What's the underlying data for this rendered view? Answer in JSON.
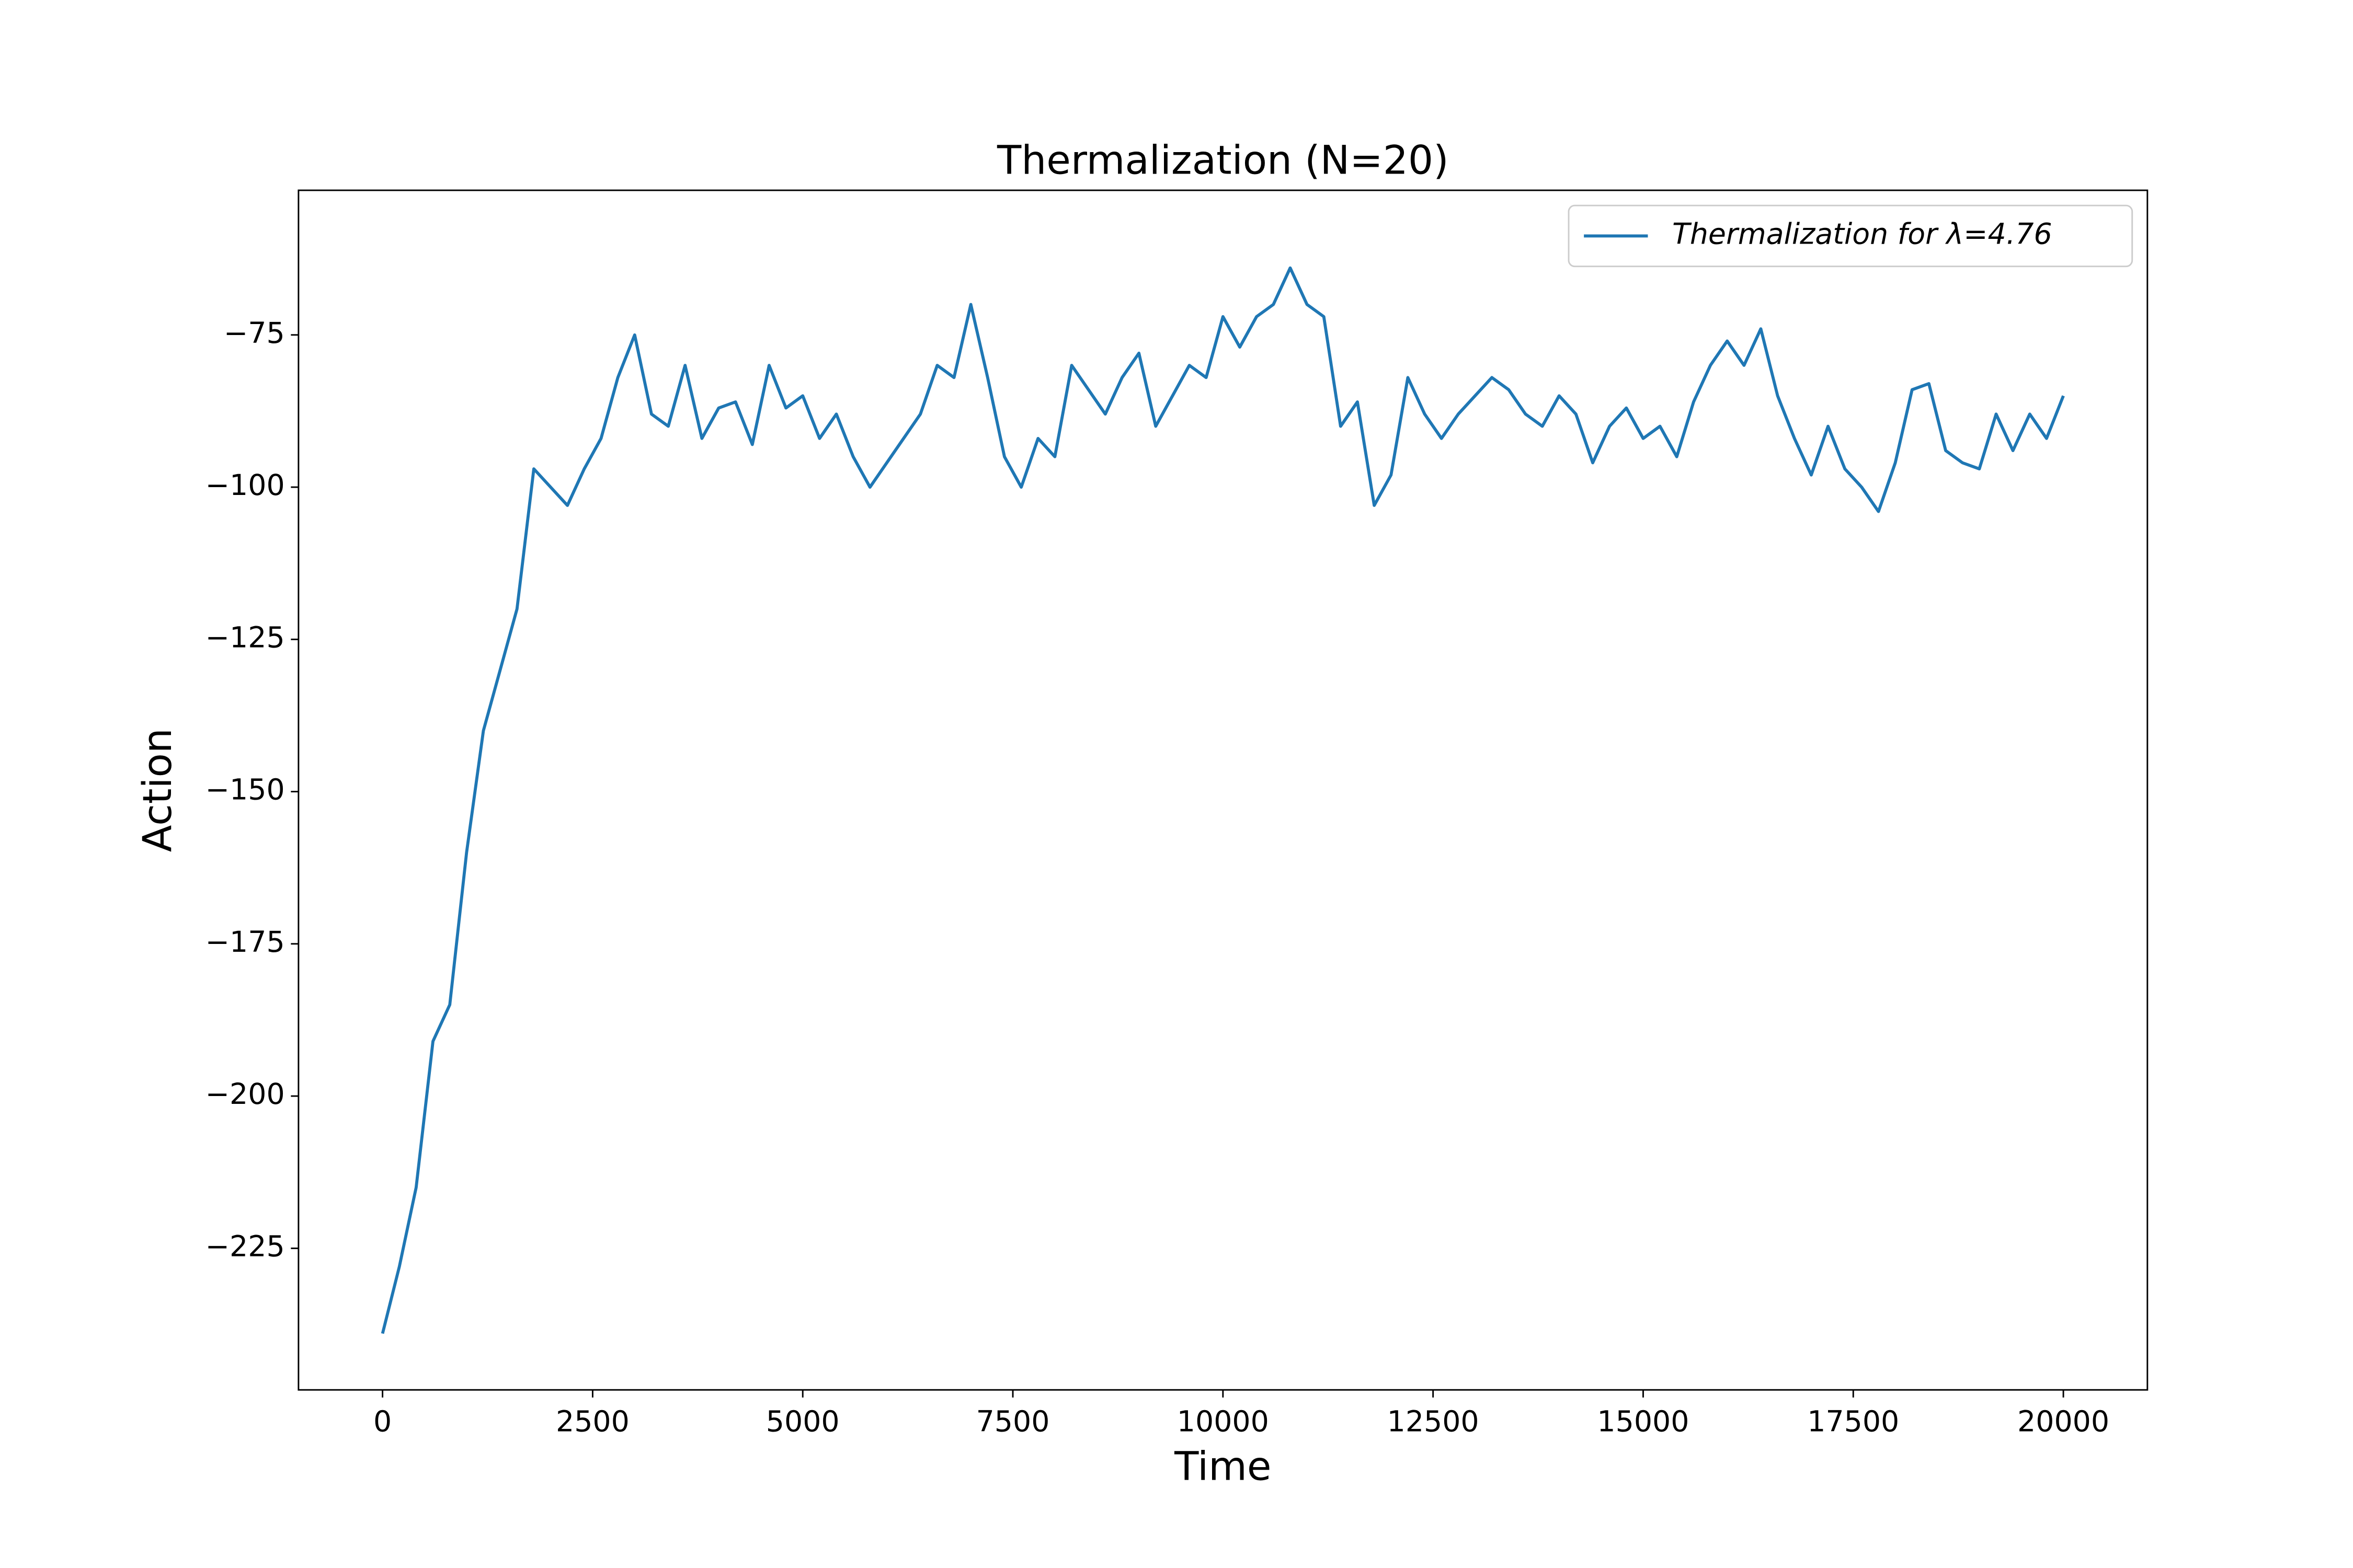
{
  "chart_data": {
    "type": "line",
    "title": "Thermalization (N=20)",
    "xlabel": "Time",
    "ylabel": "Action",
    "x": [
      0,
      200,
      400,
      600,
      800,
      1000,
      1200,
      1400,
      1600,
      1800,
      2000,
      2200,
      2400,
      2600,
      2800,
      3000,
      3200,
      3400,
      3600,
      3800,
      4000,
      4200,
      4400,
      4600,
      4800,
      5000,
      5200,
      5400,
      5600,
      5800,
      6000,
      6200,
      6400,
      6600,
      6800,
      7000,
      7200,
      7400,
      7600,
      7800,
      8000,
      8200,
      8400,
      8600,
      8800,
      9000,
      9200,
      9400,
      9600,
      9800,
      10000,
      10200,
      10400,
      10600,
      10800,
      11000,
      11200,
      11400,
      11600,
      11800,
      12000,
      12200,
      12400,
      12600,
      12800,
      13000,
      13200,
      13400,
      13600,
      13800,
      14000,
      14200,
      14400,
      14600,
      14800,
      15000,
      15200,
      15400,
      15600,
      15800,
      16000,
      16200,
      16400,
      16600,
      16800,
      17000,
      17200,
      17400,
      17600,
      17800,
      18000,
      18200,
      18400,
      18600,
      18800,
      19000,
      19200,
      19400,
      19600,
      19800,
      20000
    ],
    "series": [
      {
        "name": "Thermalization for λ=4.76",
        "color": "#1f77b4",
        "values": [
          -239,
          -228,
          -215,
          -191,
          -185,
          -160,
          -140,
          -130,
          -120,
          -97,
          -100,
          -103,
          -97,
          -92,
          -82,
          -75,
          -88,
          -90,
          -80,
          -92,
          -87,
          -86,
          -93,
          -80,
          -87,
          -85,
          -92,
          -88,
          -95,
          -100,
          -96,
          -92,
          -88,
          -80,
          -82,
          -70,
          -82,
          -95,
          -100,
          -92,
          -95,
          -80,
          -84,
          -88,
          -82,
          -78,
          -90,
          -85,
          -80,
          -82,
          -72,
          -77,
          -72,
          -70,
          -64,
          -70,
          -72,
          -90,
          -86,
          -103,
          -98,
          -82,
          -88,
          -92,
          -88,
          -85,
          -82,
          -84,
          -88,
          -90,
          -85,
          -88,
          -96,
          -90,
          -87,
          -92,
          -90,
          -95,
          -86,
          -80,
          -76,
          -80,
          -74,
          -85,
          -92,
          -98,
          -90,
          -97,
          -100,
          -104,
          -96,
          -84,
          -83,
          -94,
          -96,
          -97,
          -88,
          -94,
          -88,
          -92,
          -85
        ]
      }
    ],
    "xlim": [
      -1000,
      21000
    ],
    "ylim": [
      -248.25,
      -51.25
    ],
    "xticks": [
      0,
      2500,
      5000,
      7500,
      10000,
      12500,
      15000,
      17500,
      20000
    ],
    "yticks": [
      {
        "value": -225,
        "label": "−225"
      },
      {
        "value": -200,
        "label": "−200"
      },
      {
        "value": -175,
        "label": "−175"
      },
      {
        "value": -150,
        "label": "−150"
      },
      {
        "value": -125,
        "label": "−125"
      },
      {
        "value": -100,
        "label": "−100"
      },
      {
        "value": -75,
        "label": "−75"
      }
    ],
    "legend": "upper right",
    "grid": false
  }
}
